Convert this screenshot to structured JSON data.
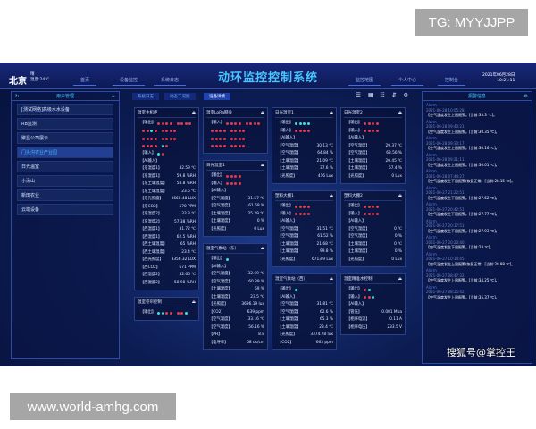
{
  "watermarks": {
    "top": "TG: MYYJJPP",
    "bottom": "www.world-amhg.com",
    "sohu": "搜狐号@掌控王"
  },
  "header": {
    "city": "北京",
    "weather": "晴",
    "temp": "温度:24℃",
    "nav_left": [
      "首页",
      "设备监控",
      "系统日志"
    ],
    "title": "动环监控控制系统",
    "nav_right": [
      "监控地图",
      "个人中心",
      "控制台"
    ],
    "date": "2021年06月28日",
    "time": "10:21:11"
  },
  "sidebar": {
    "title": "用户管理",
    "items": [
      "[测试网络]高级水水设备",
      "RB监测",
      "聚显公司展示",
      "门头沟农业产业园",
      "日光温室",
      "小汤山",
      "新田农业",
      "云端设备"
    ],
    "active": 3
  },
  "tabs": {
    "items": [
      "系统日志",
      "动态工况图",
      "设备详情"
    ],
    "active": 2,
    "tools": "☰ ▦ ☷ ⇵ ⚙"
  },
  "colors": {
    "red": "#e23a4a",
    "cyan": "#3fe0d8",
    "accent": "#39c3ff"
  },
  "columns": [
    [
      {
        "title": "温室主机柜",
        "rows": [
          [
            "【输出】",
            "rrrr rrrr"
          ],
          [
            "",
            "rrcr rrrr"
          ],
          [
            "",
            "rrrr rrrr"
          ],
          [
            "",
            "rrrr cr"
          ],
          [
            "【输入】",
            "cr"
          ],
          [
            "【AI输入】",
            ""
          ],
          [
            "【东温度1】",
            "32.59 ℃"
          ],
          [
            "【东湿度1】",
            "59.8 %RH"
          ],
          [
            "【东土壤温度】",
            "58.8 %RH"
          ],
          [
            "【东土壤湿度】",
            "23.5 ℃"
          ],
          [
            "【东光照度】",
            "3660.48 LUX"
          ],
          [
            "【东CO2】",
            "570 PPM"
          ],
          [
            "【东温度2】",
            "33.3 ℃"
          ],
          [
            "【东湿度2】",
            "57.38 %RH"
          ],
          [
            "【西温度1】",
            "31.72 ℃"
          ],
          [
            "【西湿度1】",
            "62.5 %RH"
          ],
          [
            "【西土壤温度】",
            "65 %RH"
          ],
          [
            "【西土壤湿度】",
            "23.4 ℃"
          ],
          [
            "【西光照度】",
            "3356.32 LUX"
          ],
          [
            "【西CO2】",
            "671 PPM"
          ],
          [
            "【西温度2】",
            "32.66 ℃"
          ],
          [
            "【西湿度2】",
            "58.98 %RH"
          ]
        ]
      },
      {
        "title": "温室卷帘控制",
        "rows": [
          [
            "【输出】",
            "ccrr rrc"
          ]
        ]
      }
    ],
    [
      {
        "title": "温室LoRa网关",
        "rows": [
          [
            "【输入】",
            "rrrr rrrr"
          ],
          [
            "",
            "rrrr rrrr"
          ],
          [
            "",
            "rrrr rrrr"
          ],
          [
            "",
            "rrrr rrrr"
          ]
        ]
      },
      {
        "title": "日光温室1",
        "rows": [
          [
            "【输出】",
            "rrrr"
          ],
          [
            "【输入】",
            "rrrr"
          ],
          [
            "【AI输入】",
            ""
          ],
          [
            "【空气温度】",
            "31.57 ℃"
          ],
          [
            "【空气湿度】",
            "61.69 %"
          ],
          [
            "【土壤温度】",
            "25.29 ℃"
          ],
          [
            "【土壤湿度】",
            "0 %"
          ],
          [
            "【光照度】",
            "0 Lux"
          ]
        ]
      },
      {
        "title": "温室气象站（东）",
        "rows": [
          [
            "【输出】",
            "c"
          ],
          [
            "【AI输入】",
            ""
          ],
          [
            "【空气温度】",
            "32.69 ℃"
          ],
          [
            "【空气湿度】",
            "60.39 %"
          ],
          [
            "【土壤湿度】",
            "59 %"
          ],
          [
            "【土壤温度】",
            "23.5 ℃"
          ],
          [
            "【光照度】",
            "3696.19 lux"
          ],
          [
            "【CO2】",
            "639 ppm"
          ],
          [
            "【空气温度】",
            "33.16 ℃"
          ],
          [
            "【空气湿度】",
            "56.16 %"
          ],
          [
            "【PH】",
            "8.8"
          ],
          [
            "【电导率】",
            "58 us/cm"
          ]
        ]
      }
    ],
    [
      {
        "title": "日光温室1",
        "rows": [
          [
            "【输出】",
            "cccc"
          ],
          [
            "【输入】",
            "rrrr"
          ],
          [
            "【AI输入】",
            ""
          ],
          [
            "【空气温度】",
            "30.13 ℃"
          ],
          [
            "【空气湿度】",
            "64.84 %"
          ],
          [
            "【土壤温度】",
            "21.09 ℃"
          ],
          [
            "【土壤湿度】",
            "37.6 %"
          ],
          [
            "【光照度】",
            "416 Lux"
          ]
        ]
      },
      {
        "title": "塑料大棚1",
        "rows": [
          [
            "【输出】",
            "rrrr"
          ],
          [
            "【输入】",
            "rrrr"
          ],
          [
            "【AI输入】",
            ""
          ],
          [
            "【空气温度】",
            "31.51 ℃"
          ],
          [
            "【空气湿度】",
            "61.52 %"
          ],
          [
            "【土壤温度】",
            "21.68 ℃"
          ],
          [
            "【土壤湿度】",
            "99.8 %"
          ],
          [
            "【光照度】",
            "6713.9 Lux"
          ]
        ]
      },
      {
        "title": "温室气象站（西）",
        "rows": [
          [
            "【输出】",
            "c"
          ],
          [
            "【AI输入】",
            ""
          ],
          [
            "【空气温度】",
            "31.81 ℃"
          ],
          [
            "【空气湿度】",
            "62.6 %"
          ],
          [
            "【土壤湿度】",
            "65.3 %"
          ],
          [
            "【土壤温度】",
            "23.4 ℃"
          ],
          [
            "【光照度】",
            "3374.78 lux"
          ],
          [
            "【CO2】",
            "663 ppm"
          ]
        ]
      }
    ],
    [
      {
        "title": "日光温室2",
        "rows": [
          [
            "【输出】",
            "rrrr"
          ],
          [
            "【输入】",
            "rrrr"
          ],
          [
            "【AI输入】",
            ""
          ],
          [
            "【空气温度】",
            "29.37 ℃"
          ],
          [
            "【空气湿度】",
            "63.56 %"
          ],
          [
            "【土壤温度】",
            "20.45 ℃"
          ],
          [
            "【土壤湿度】",
            "67.4 %"
          ],
          [
            "【光照度】",
            "0 Lux"
          ]
        ]
      },
      {
        "title": "塑料大棚2",
        "rows": [
          [
            "【输出】",
            "rrrr"
          ],
          [
            "【输入】",
            "rrrr"
          ],
          [
            "【AI输入】",
            ""
          ],
          [
            "【空气温度】",
            "0 ℃"
          ],
          [
            "【空气湿度】",
            "0 %"
          ],
          [
            "【土壤温度】",
            "0 ℃"
          ],
          [
            "【土壤湿度】",
            "0 %"
          ],
          [
            "【光照度】",
            "0 Lux"
          ]
        ]
      },
      {
        "title": "温室精准水控制",
        "rows": [
          [
            "【输出】",
            "rc"
          ],
          [
            "【输入】",
            "rrc"
          ],
          [
            "【AI输入】",
            ""
          ],
          [
            "【管压】",
            "0.001 Mpa"
          ],
          [
            "【相序电流】",
            "0.11 A"
          ],
          [
            "【相序电压】",
            "233.5 V"
          ]
        ]
      }
    ]
  ],
  "alarms": {
    "title": "报警信息",
    "items": [
      {
        "a": "Alarm",
        "t": "2021-06-28 10:05:28",
        "m": "【空气温度发生上限报警。[当前:33.3 ℃]。"
      },
      {
        "a": "Alarm",
        "t": "2021-06-28 09:40:21",
        "m": "【空气温度发生上限报警。[当前:30.35 ℃]。"
      },
      {
        "a": "Alarm",
        "t": "2021-06-28 09:30:17",
        "m": "【空气温度发生上限报警。[当前:30.16 ℃]。"
      },
      {
        "a": "Alarm",
        "t": "2021-06-28 09:21:11",
        "m": "【空气温度发生上限报警。[当前:30.01 ℃]。"
      },
      {
        "a": "Alarm",
        "t": "2021-06-28 07:44:27",
        "m": "【空气温度发生下限报警(恢复正常。[当前:28.15 ℃]。"
      },
      {
        "a": "Alarm",
        "t": "2021-06-27 21:22:51",
        "m": "【空气温度发生下限报警。[当前:27.62 ℃]。"
      },
      {
        "a": "Alarm",
        "t": "2021-06-27 20:42:51",
        "m": "【空气温度发生下限报警。[当前:27.77 ℃]。"
      },
      {
        "a": "Alarm",
        "t": "2021-06-27 20:17:51",
        "m": "【空气温度发生下限报警。[当前:27.93 ℃]。"
      },
      {
        "a": "Alarm",
        "t": "2021-06-27 20:20:40",
        "m": "【空气温度发生下限报警。[当前:28 ℃]。"
      },
      {
        "a": "Alarm",
        "t": "2021-06-27 10:14:45",
        "m": "【空气温度发生上限报警(恢复正常。[当前:29.88 ℃]。"
      },
      {
        "a": "Alarm",
        "t": "2021-06-27 08:47:32",
        "m": "【空气温度发生上限报警。[当前:34.25 ℃]。"
      },
      {
        "a": "Alarm",
        "t": "2021-06-27 08:25:42",
        "m": "【空气温度发生上限报警。[当前:35.37 ℃]。"
      }
    ]
  }
}
